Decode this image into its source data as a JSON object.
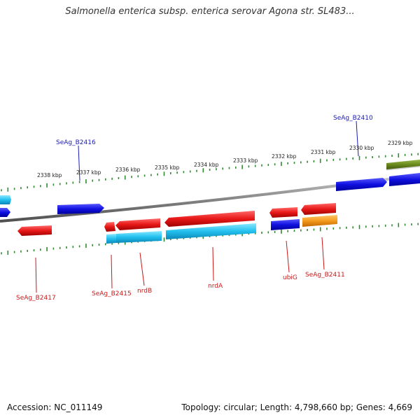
{
  "title": "Salmonella enterica subsp. enterica serovar Agona str. SL483...",
  "footer": {
    "accession": "Accession: NC_011149",
    "topology": "Topology: circular; Length: 4,798,660 bp; Genes: 4,669"
  },
  "colors": {
    "forward_gene": "#e8191a",
    "reverse_gene": "#1010d8",
    "cds_cyan": "#22c8f0",
    "orange_gene": "#f49a1e",
    "olive_gene": "#6b8a1e",
    "backbone": "#8c8c8c",
    "tick": "#2e8b2e",
    "label_top": "#1a1ab8",
    "label_bottom": "#c81818"
  },
  "scale_labels": [
    "2338 kbp",
    "2337 kbp",
    "2336 kbp",
    "2335 kbp",
    "2334 kbp",
    "2333 kbp",
    "2332 kbp",
    "2331 kbp",
    "2330 kbp",
    "2329 kbp"
  ],
  "gene_labels_top": [
    "SeAg_B2416",
    "SeAg_B2410"
  ],
  "gene_labels_bottom": [
    "SeAg_B2417",
    "SeAg_B2415",
    "nrdB",
    "nrdA",
    "ubiG",
    "SeAg_B2411"
  ]
}
